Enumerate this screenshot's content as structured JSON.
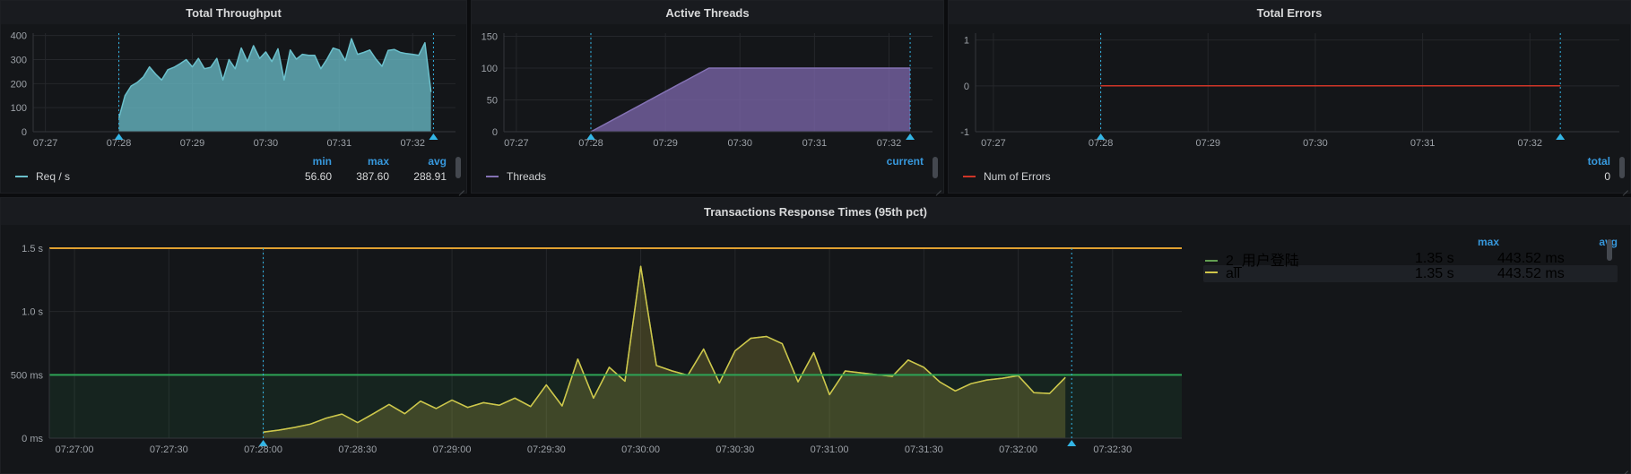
{
  "accent_colors": {
    "legend_header_blue": "#3798dc",
    "annotation_cyan": "#33b5e5",
    "grid": "#25272b",
    "axis": "#33363b",
    "panel_bg": "#141619",
    "page_bg": "#0b0c0e"
  },
  "panels": [
    {
      "title": "Total Throughput",
      "legend": {
        "columns": [
          "min",
          "max",
          "avg"
        ],
        "scrollbar": true,
        "rows": [
          {
            "name": "Req / s",
            "color": "#6bc0cc",
            "values": [
              "56.60",
              "387.60",
              "288.91"
            ]
          }
        ]
      }
    },
    {
      "title": "Active Threads",
      "legend": {
        "columns": [
          "current"
        ],
        "scrollbar": true,
        "rows": [
          {
            "name": "Threads",
            "color": "#8472b4",
            "values": [
              ""
            ]
          }
        ]
      }
    },
    {
      "title": "Total Errors",
      "legend": {
        "columns": [
          "total"
        ],
        "scrollbar": true,
        "rows": [
          {
            "name": "Num of Errors",
            "color": "#cf3527",
            "values": [
              "0"
            ]
          }
        ]
      }
    },
    {
      "title": "Transactions Response Times (95th pct)",
      "legend": {
        "columns": [
          "max",
          "avg"
        ],
        "scrollbar": true,
        "side": true,
        "rows": [
          {
            "name": "2_用户登陆",
            "color": "#629e51",
            "values": [
              "1.35 s",
              "443.52 ms"
            ],
            "highlighted": false
          },
          {
            "name": "all",
            "color": "#d0c64a",
            "values": [
              "1.35 s",
              "443.52 ms"
            ],
            "highlighted": true
          }
        ]
      }
    }
  ],
  "chart_data": [
    {
      "type": "area",
      "title": "Total Throughput",
      "x_domain": [
        "07:26:50",
        "07:32:35"
      ],
      "ylim": [
        0,
        410
      ],
      "y_ticks": [
        {
          "v": 0,
          "label": "0"
        },
        {
          "v": 100,
          "label": "100"
        },
        {
          "v": 200,
          "label": "200"
        },
        {
          "v": 300,
          "label": "300"
        },
        {
          "v": 400,
          "label": "400"
        }
      ],
      "x_ticks": [
        {
          "t": "07:27:00",
          "label": "07:27"
        },
        {
          "t": "07:28:00",
          "label": "07:28"
        },
        {
          "t": "07:29:00",
          "label": "07:29"
        },
        {
          "t": "07:30:00",
          "label": "07:30"
        },
        {
          "t": "07:31:00",
          "label": "07:31"
        },
        {
          "t": "07:32:00",
          "label": "07:32"
        }
      ],
      "annotations": [
        "07:28:00",
        "07:32:17"
      ],
      "layout": {
        "ml": 36,
        "mr": 12,
        "mt": 10,
        "mb": 24
      },
      "series": [
        {
          "name": "Req / s",
          "color": "#6bc0cc",
          "fill": "rgba(107,192,204,0.75)",
          "width": 1.5,
          "start": "07:28:00",
          "interval_s": 5,
          "values": [
            57,
            150,
            190,
            205,
            228,
            270,
            240,
            215,
            258,
            268,
            283,
            300,
            270,
            305,
            262,
            268,
            305,
            215,
            300,
            262,
            348,
            292,
            358,
            305,
            332,
            292,
            345,
            215,
            340,
            302,
            322,
            318,
            318,
            262,
            302,
            348,
            340,
            296,
            387,
            322,
            330,
            340,
            302,
            272,
            338,
            342,
            330,
            325,
            322,
            318,
            370,
            165
          ]
        }
      ]
    },
    {
      "type": "area",
      "title": "Active Threads",
      "x_domain": [
        "07:26:50",
        "07:32:35"
      ],
      "ylim": [
        0,
        155
      ],
      "y_ticks": [
        {
          "v": 0,
          "label": "0"
        },
        {
          "v": 50,
          "label": "50"
        },
        {
          "v": 100,
          "label": "100"
        },
        {
          "v": 150,
          "label": "150"
        }
      ],
      "x_ticks": [
        {
          "t": "07:27:00",
          "label": "07:27"
        },
        {
          "t": "07:28:00",
          "label": "07:28"
        },
        {
          "t": "07:29:00",
          "label": "07:29"
        },
        {
          "t": "07:30:00",
          "label": "07:30"
        },
        {
          "t": "07:31:00",
          "label": "07:31"
        },
        {
          "t": "07:32:00",
          "label": "07:32"
        }
      ],
      "annotations": [
        "07:28:00",
        "07:32:17"
      ],
      "layout": {
        "ml": 36,
        "mr": 12,
        "mt": 10,
        "mb": 24
      },
      "series": [
        {
          "name": "Threads",
          "color": "#8472b4",
          "fill": "rgba(125,104,173,0.75)",
          "width": 1.5,
          "points": [
            [
              "07:28:00",
              0
            ],
            [
              "07:29:35",
              100
            ],
            [
              "07:32:17",
              100
            ]
          ]
        }
      ]
    },
    {
      "type": "line",
      "title": "Total Errors",
      "x_domain": [
        "07:26:50",
        "07:32:50"
      ],
      "ylim": [
        -1,
        1.15
      ],
      "y_ticks": [
        {
          "v": -1,
          "label": "-1"
        },
        {
          "v": 0,
          "label": "0"
        },
        {
          "v": 1,
          "label": "1"
        }
      ],
      "x_ticks": [
        {
          "t": "07:27:00",
          "label": "07:27"
        },
        {
          "t": "07:28:00",
          "label": "07:28"
        },
        {
          "t": "07:29:00",
          "label": "07:29"
        },
        {
          "t": "07:30:00",
          "label": "07:30"
        },
        {
          "t": "07:31:00",
          "label": "07:31"
        },
        {
          "t": "07:32:00",
          "label": "07:32"
        }
      ],
      "annotations": [
        "07:28:00",
        "07:32:17"
      ],
      "layout": {
        "ml": 30,
        "mr": 12,
        "mt": 10,
        "mb": 24
      },
      "series": [
        {
          "name": "Num of Errors",
          "color": "#cf3527",
          "fill": null,
          "width": 1.5,
          "points": [
            [
              "07:28:00",
              0
            ],
            [
              "07:32:17",
              0
            ]
          ]
        }
      ]
    },
    {
      "type": "area",
      "title": "Transactions Response Times (95th pct)",
      "x_domain": [
        "07:26:52",
        "07:32:52"
      ],
      "ylim": [
        0,
        1500
      ],
      "ylabel_unit": "ms",
      "y_ticks": [
        {
          "v": 0,
          "label": "0 ms"
        },
        {
          "v": 500,
          "label": "500 ms"
        },
        {
          "v": 1000,
          "label": "1.0 s"
        },
        {
          "v": 1500,
          "label": "1.5 s"
        }
      ],
      "x_ticks": [
        {
          "t": "07:27:00",
          "label": "07:27:00"
        },
        {
          "t": "07:27:30",
          "label": "07:27:30"
        },
        {
          "t": "07:28:00",
          "label": "07:28:00"
        },
        {
          "t": "07:28:30",
          "label": "07:28:30"
        },
        {
          "t": "07:29:00",
          "label": "07:29:00"
        },
        {
          "t": "07:29:30",
          "label": "07:29:30"
        },
        {
          "t": "07:30:00",
          "label": "07:30:00"
        },
        {
          "t": "07:30:30",
          "label": "07:30:30"
        },
        {
          "t": "07:31:00",
          "label": "07:31:00"
        },
        {
          "t": "07:31:30",
          "label": "07:31:30"
        },
        {
          "t": "07:32:00",
          "label": "07:32:00"
        },
        {
          "t": "07:32:30",
          "label": "07:32:30"
        }
      ],
      "annotations": [
        "07:28:00",
        "07:32:17"
      ],
      "thresholds": [
        {
          "value": 1500,
          "color": "#e0a030",
          "fill": null
        },
        {
          "value": 500,
          "color": "#2ea356",
          "fill": "rgba(46,163,86,0.10)"
        }
      ],
      "layout": {
        "ml": 54,
        "mr": 500,
        "mt": 26,
        "mb": 39
      },
      "series": [
        {
          "name": "2_用户登陆",
          "color": "#629e51",
          "fill": null,
          "width": 1.5,
          "start": "07:28:00",
          "interval_s": 5,
          "values": [
            48,
            64,
            85,
            111,
            158,
            190,
            123,
            193,
            266,
            193,
            292,
            234,
            301,
            243,
            280,
            260,
            316,
            250,
            420,
            255,
            624,
            316,
            560,
            450,
            1357,
            574,
            531,
            497,
            703,
            436,
            689,
            789,
            803,
            746,
            445,
            674,
            344,
            531,
            516,
            502,
            488,
            617,
            560,
            445,
            373,
            430,
            459,
            473,
            494,
            359,
            353,
            480
          ]
        },
        {
          "name": "all",
          "color": "#d0c64a",
          "fill": "rgba(208,198,74,0.22)",
          "width": 1.5,
          "start": "07:28:00",
          "interval_s": 5,
          "values": [
            48,
            64,
            85,
            111,
            158,
            190,
            123,
            193,
            266,
            193,
            292,
            234,
            301,
            243,
            280,
            260,
            316,
            250,
            420,
            255,
            624,
            316,
            560,
            450,
            1357,
            574,
            531,
            497,
            703,
            436,
            689,
            789,
            803,
            746,
            445,
            674,
            344,
            531,
            516,
            502,
            488,
            617,
            560,
            445,
            373,
            430,
            459,
            473,
            494,
            359,
            353,
            480
          ]
        }
      ]
    }
  ]
}
